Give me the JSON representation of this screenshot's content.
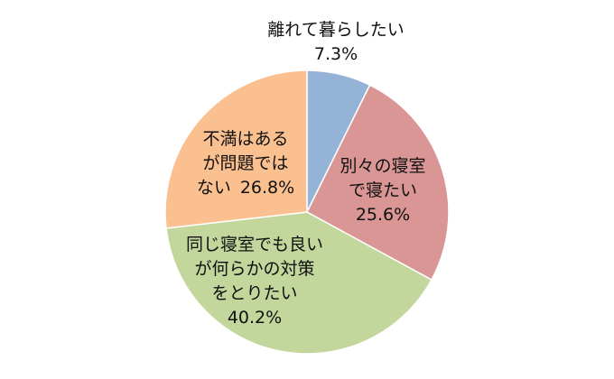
{
  "chart_data": {
    "type": "pie",
    "title": "",
    "slices": [
      {
        "label": "離れて暮らしたい",
        "value": 7.3,
        "value_text": "7.3%",
        "color": "#95B3D7"
      },
      {
        "label": "別々の寝室で寝たい",
        "value": 25.6,
        "value_text": "25.6%",
        "color": "#D99694"
      },
      {
        "label": "同じ寝室でも良いが何らかの対策をとりたい",
        "value": 40.2,
        "value_text": "40.2%",
        "color": "#C3D69B"
      },
      {
        "label": "不満はあるが問題ではない",
        "value": 26.8,
        "value_text": "26.8%",
        "color": "#FAC090"
      }
    ],
    "start_angle": "12 o'clock",
    "direction": "clockwise",
    "legend": "none"
  }
}
